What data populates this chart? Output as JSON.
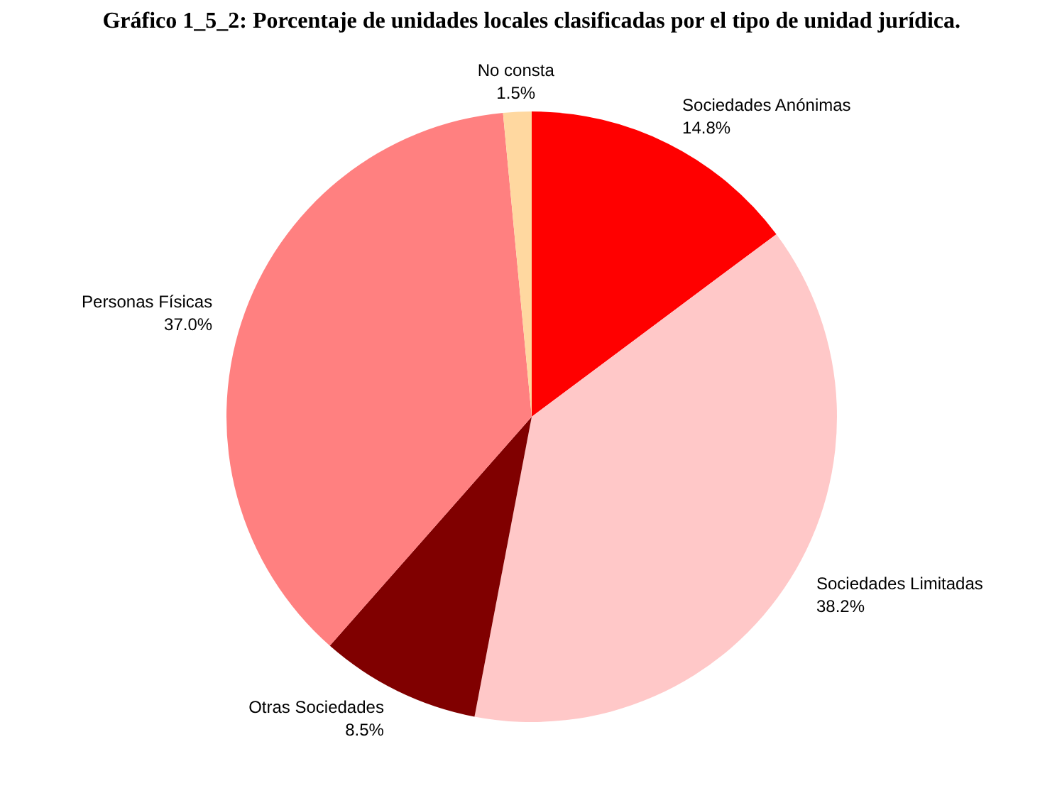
{
  "chart_data": {
    "type": "pie",
    "title": "Gráfico 1_5_2: Porcentaje de unidades locales clasificadas por el tipo de unidad jurídica.",
    "categories": [
      "Sociedades Anónimas",
      "Sociedades Limitadas",
      "Otras Sociedades",
      "Personas Físicas",
      "No consta"
    ],
    "values": [
      14.8,
      38.2,
      8.5,
      37.0,
      1.5
    ],
    "value_labels": [
      "14.8%",
      "38.2%",
      "8.5%",
      "37.0%",
      "1.5%"
    ],
    "colors": [
      "#ff0000",
      "#ffc8c8",
      "#800000",
      "#ff8080",
      "#ffd8a0"
    ]
  }
}
